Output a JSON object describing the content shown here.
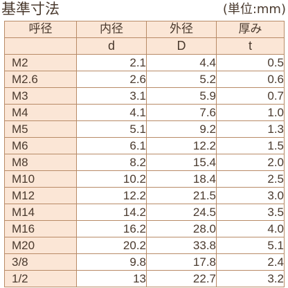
{
  "header": {
    "title": "基準寸法",
    "unit": "(単位:mm)"
  },
  "table": {
    "columns": [
      "呼径",
      "内径",
      "外径",
      "厚み"
    ],
    "symbols": [
      "",
      "d",
      "D",
      "t"
    ],
    "rows": [
      [
        "M2",
        "2.1",
        "4.4",
        "0.5"
      ],
      [
        "M2.6",
        "2.6",
        "5.2",
        "0.6"
      ],
      [
        "M3",
        "3.1",
        "5.9",
        "0.7"
      ],
      [
        "M4",
        "4.1",
        "7.6",
        "1.0"
      ],
      [
        "M5",
        "5.1",
        "9.2",
        "1.3"
      ],
      [
        "M6",
        "6.1",
        "12.2",
        "1.5"
      ],
      [
        "M8",
        "8.2",
        "15.4",
        "2.0"
      ],
      [
        "M10",
        "10.2",
        "18.4",
        "2.5"
      ],
      [
        "M12",
        "12.2",
        "21.5",
        "3.0"
      ],
      [
        "M14",
        "14.2",
        "24.5",
        "3.5"
      ],
      [
        "M16",
        "16.2",
        "28.0",
        "4.0"
      ],
      [
        "M20",
        "20.2",
        "33.8",
        "5.1"
      ],
      [
        "3/8",
        "9.8",
        "17.8",
        "2.4"
      ],
      [
        "1/2",
        "13",
        "22.7",
        "3.2"
      ]
    ]
  },
  "colors": {
    "header_bg": "#fbe6d6",
    "border": "#b88a66",
    "text": "#4a3a2e"
  }
}
